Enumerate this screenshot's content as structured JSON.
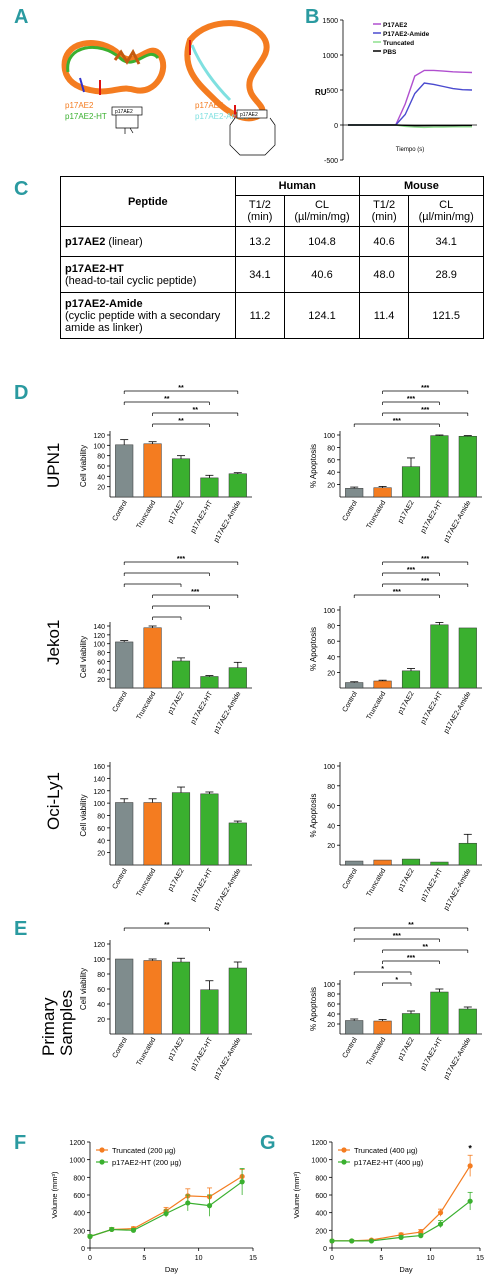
{
  "panels": {
    "A": "A",
    "B": "B",
    "C": "C",
    "D": "D",
    "E": "E",
    "F": "F",
    "G": "G"
  },
  "colors": {
    "grey": "#7f8c8d",
    "orange": "#f47c20",
    "green": "#3ab02f",
    "purple": "#b04fcf",
    "blue": "#4a4acf",
    "lightgreen": "#8ee08e",
    "black": "#000000",
    "teal": "#2a9aa0"
  },
  "panelA": {
    "left_labels": [
      "p17AE2",
      "p17AE2-HT"
    ],
    "left_colors": [
      "#f47c20",
      "#3ab02f"
    ],
    "left_box": "p17AE2",
    "right_labels": [
      "p17AE2",
      "p17AE2-Amide"
    ],
    "right_colors": [
      "#f47c20",
      "#7fe0e0"
    ],
    "right_box": "p17AE2"
  },
  "chart_data": [
    {
      "id": "B",
      "type": "line",
      "xlabel": "Tiempo (s)",
      "ylabel": "RU",
      "yticks": [
        "1500",
        "1000",
        "500",
        "0",
        "-500"
      ],
      "ylim": [
        -500,
        1500
      ],
      "legend": [
        "P17AE2",
        "P17AE2-Amide",
        "Truncated",
        "PBS"
      ],
      "series": [
        {
          "name": "P17AE2",
          "color": "#b04fcf",
          "values": [
            0,
            0,
            0,
            0,
            0,
            0,
            300,
            700,
            780,
            780,
            770,
            760,
            755,
            750
          ]
        },
        {
          "name": "P17AE2-Amide",
          "color": "#4a4acf",
          "values": [
            0,
            0,
            0,
            0,
            0,
            0,
            150,
            450,
            600,
            580,
            550,
            520,
            505,
            500
          ]
        },
        {
          "name": "Truncated",
          "color": "#8ee08e",
          "values": [
            0,
            0,
            0,
            0,
            0,
            0,
            -20,
            -30,
            -35,
            -30,
            -28,
            -25,
            -25,
            -25
          ]
        },
        {
          "name": "PBS",
          "color": "#000000",
          "values": [
            0,
            0,
            0,
            0,
            0,
            0,
            -5,
            -10,
            -10,
            -8,
            -8,
            -8,
            -6,
            -6
          ]
        }
      ]
    },
    {
      "id": "C",
      "type": "table",
      "columns": [
        "Peptide",
        "Human",
        "Mouse"
      ],
      "subcolumns": [
        "T1/2 (min)",
        "CL (µl/min/mg)",
        "T1/2 (min)",
        "CL (µl/min/mg)"
      ],
      "rows": [
        {
          "name": "p17AE2",
          "desc": " (linear)",
          "values": [
            "13.2",
            "104.8",
            "40.6",
            "34.1"
          ]
        },
        {
          "name": "p17AE2-HT",
          "desc": "(head-to-tail cyclic peptide)",
          "values": [
            "34.1",
            "40.6",
            "48.0",
            "28.9"
          ]
        },
        {
          "name": "p17AE2-Amide",
          "desc": "(cyclic peptide with a secondary amide as linker)",
          "values": [
            "11.2",
            "124.1",
            "11.4",
            "121.5"
          ]
        }
      ]
    },
    {
      "id": "D-UPN1-viability",
      "type": "bar",
      "row_label": "UPN1",
      "ylabel": "Cell viability",
      "categories": [
        "Control",
        "Truncated",
        "p17AE2",
        "p17AE2-HT",
        "p17AE2-Amide"
      ],
      "values": [
        101,
        103,
        74,
        37,
        45
      ],
      "errors": [
        10,
        4,
        6,
        5,
        2
      ],
      "ylim": [
        0,
        120
      ],
      "yticks": [
        "20",
        "40",
        "60",
        "80",
        "100",
        "120"
      ],
      "sig": [
        {
          "from": 0,
          "to": 4,
          "label": "**"
        },
        {
          "from": 0,
          "to": 3,
          "label": "**"
        },
        {
          "from": 1,
          "to": 4,
          "label": "**"
        },
        {
          "from": 1,
          "to": 3,
          "label": "**"
        }
      ]
    },
    {
      "id": "D-UPN1-apoptosis",
      "type": "bar",
      "ylabel": "% Apoptosis",
      "categories": [
        "Control",
        "Truncated",
        "p17AE2",
        "p17AE2-HT",
        "p17AE2-Amide"
      ],
      "values": [
        14,
        15,
        49,
        99,
        98
      ],
      "errors": [
        2,
        2,
        14,
        1,
        1
      ],
      "ylim": [
        0,
        100
      ],
      "yticks": [
        "20",
        "40",
        "60",
        "80",
        "100"
      ],
      "sig": [
        {
          "from": 1,
          "to": 4,
          "label": "***"
        },
        {
          "from": 1,
          "to": 3,
          "label": "***"
        },
        {
          "from": 1,
          "to": 4,
          "label": "***"
        },
        {
          "from": 0,
          "to": 3,
          "label": "***"
        }
      ]
    },
    {
      "id": "D-Jeko1-viability",
      "type": "bar",
      "row_label": "Jeko1",
      "ylabel": "Cell viability",
      "categories": [
        "Control",
        "Truncated",
        "p17AE2",
        "p17AE2-HT",
        "p17AE2-Amide"
      ],
      "values": [
        104,
        136,
        61,
        26,
        46
      ],
      "errors": [
        3,
        4,
        7,
        2,
        12
      ],
      "ylim": [
        0,
        140
      ],
      "yticks": [
        "20",
        "40",
        "60",
        "80",
        "100",
        "120",
        "140"
      ],
      "sig": [
        {
          "from": 0,
          "to": 4,
          "label": "***"
        },
        {
          "from": 0,
          "to": 3,
          "label": ""
        },
        {
          "from": 0,
          "to": 2,
          "label": ""
        },
        {
          "from": 1,
          "to": 4,
          "label": "***"
        },
        {
          "from": 1,
          "to": 3,
          "label": ""
        },
        {
          "from": 1,
          "to": 2,
          "label": ""
        }
      ]
    },
    {
      "id": "D-Jeko1-apoptosis",
      "type": "bar",
      "ylabel": "% Apoptosis",
      "categories": [
        "Control",
        "Truncated",
        "p17AE2",
        "p17AE2-HT",
        "p17AE2-Amide"
      ],
      "values": [
        7,
        9,
        22,
        81,
        77
      ],
      "errors": [
        1,
        1,
        3,
        3,
        0
      ],
      "ylim": [
        0,
        100
      ],
      "yticks": [
        "20",
        "40",
        "60",
        "80",
        "100"
      ],
      "sig": [
        {
          "from": 1,
          "to": 4,
          "label": "***"
        },
        {
          "from": 1,
          "to": 3,
          "label": "***"
        },
        {
          "from": 1,
          "to": 4,
          "label": "***"
        },
        {
          "from": 0,
          "to": 3,
          "label": "***"
        }
      ]
    },
    {
      "id": "D-OciLy1-viability",
      "type": "bar",
      "row_label": "Oci-Ly1",
      "ylabel": "Cell viability",
      "categories": [
        "Control",
        "Truncated",
        "p17AE2",
        "p17AE2-HT",
        "p17AE2-Amide"
      ],
      "values": [
        101,
        101,
        117,
        115,
        68
      ],
      "errors": [
        6,
        6,
        9,
        3,
        3
      ],
      "ylim": [
        0,
        160
      ],
      "yticks": [
        "20",
        "40",
        "60",
        "80",
        "100",
        "120",
        "140",
        "160"
      ],
      "sig": []
    },
    {
      "id": "D-OciLy1-apoptosis",
      "type": "bar",
      "ylabel": "% Apoptosis",
      "categories": [
        "Control",
        "Truncated",
        "p17AE2",
        "p17AE2-HT",
        "p17AE2-Amide"
      ],
      "values": [
        4,
        5,
        6,
        3,
        22
      ],
      "errors": [
        0,
        0,
        0,
        0,
        9
      ],
      "ylim": [
        0,
        100
      ],
      "yticks": [
        "20",
        "40",
        "60",
        "80",
        "100"
      ],
      "sig": []
    },
    {
      "id": "E-viability",
      "type": "bar",
      "row_label": "Primary Samples",
      "ylabel": "Cell viability",
      "categories": [
        "Control",
        "Truncated",
        "p17AE2",
        "p17AE2-HT",
        "p17AE2-Amide"
      ],
      "values": [
        100,
        98,
        96,
        59,
        88
      ],
      "errors": [
        0,
        2,
        5,
        12,
        8
      ],
      "ylim": [
        0,
        120
      ],
      "yticks": [
        "20",
        "40",
        "60",
        "80",
        "100",
        "120"
      ],
      "sig": [
        {
          "from": 0,
          "to": 3,
          "label": "**"
        }
      ]
    },
    {
      "id": "E-apoptosis",
      "type": "bar",
      "ylabel": "% Apoptosis",
      "categories": [
        "Control",
        "Truncated",
        "p17AE2",
        "p17AE2-HT",
        "p17AE2-Amide"
      ],
      "values": [
        27,
        26,
        41,
        84,
        50
      ],
      "errors": [
        3,
        3,
        5,
        6,
        4
      ],
      "ylim": [
        0,
        100
      ],
      "yticks": [
        "20",
        "40",
        "60",
        "80",
        "100"
      ],
      "sig": [
        {
          "from": 0,
          "to": 4,
          "label": "**"
        },
        {
          "from": 0,
          "to": 3,
          "label": "***"
        },
        {
          "from": 1,
          "to": 4,
          "label": "**"
        },
        {
          "from": 1,
          "to": 3,
          "label": "***"
        },
        {
          "from": 0,
          "to": 2,
          "label": "*"
        },
        {
          "from": 1,
          "to": 2,
          "label": "*"
        }
      ]
    },
    {
      "id": "F",
      "type": "line",
      "xlabel": "Day",
      "ylabel": "Volume (mm³)",
      "ylim": [
        0,
        1200
      ],
      "yticks": [
        "0",
        "200",
        "400",
        "600",
        "800",
        "1000",
        "1200"
      ],
      "xlim": [
        0,
        15
      ],
      "xticks": [
        "0",
        "5",
        "10",
        "15"
      ],
      "series": [
        {
          "name": "Truncated (200 µg)",
          "color": "#f47c20",
          "x": [
            0,
            2,
            4,
            7,
            9,
            11,
            14
          ],
          "y": [
            130,
            210,
            220,
            420,
            590,
            580,
            810
          ],
          "err": [
            20,
            20,
            20,
            40,
            80,
            100,
            80
          ]
        },
        {
          "name": "p17AE2-HT (200 µg)",
          "color": "#3ab02f",
          "x": [
            0,
            2,
            4,
            7,
            9,
            11,
            14
          ],
          "y": [
            130,
            210,
            200,
            390,
            510,
            480,
            750
          ],
          "err": [
            20,
            20,
            20,
            40,
            90,
            120,
            150
          ]
        }
      ]
    },
    {
      "id": "G",
      "type": "line",
      "xlabel": "Day",
      "ylabel": "Volume (mm³)",
      "ylim": [
        0,
        1200
      ],
      "yticks": [
        "0",
        "200",
        "400",
        "600",
        "800",
        "1000",
        "1200"
      ],
      "xlim": [
        0,
        15
      ],
      "xticks": [
        "0",
        "5",
        "10",
        "15"
      ],
      "annotation": "*",
      "series": [
        {
          "name": "Truncated (400 µg)",
          "color": "#f47c20",
          "x": [
            0,
            2,
            4,
            7,
            9,
            11,
            14
          ],
          "y": [
            80,
            80,
            90,
            150,
            180,
            400,
            930
          ],
          "err": [
            10,
            10,
            10,
            20,
            30,
            40,
            120
          ]
        },
        {
          "name": "p17AE2-HT (400 µg)",
          "color": "#3ab02f",
          "x": [
            0,
            2,
            4,
            7,
            9,
            11,
            14
          ],
          "y": [
            80,
            80,
            80,
            120,
            140,
            270,
            530
          ],
          "err": [
            10,
            10,
            10,
            20,
            20,
            40,
            100
          ]
        }
      ]
    }
  ]
}
